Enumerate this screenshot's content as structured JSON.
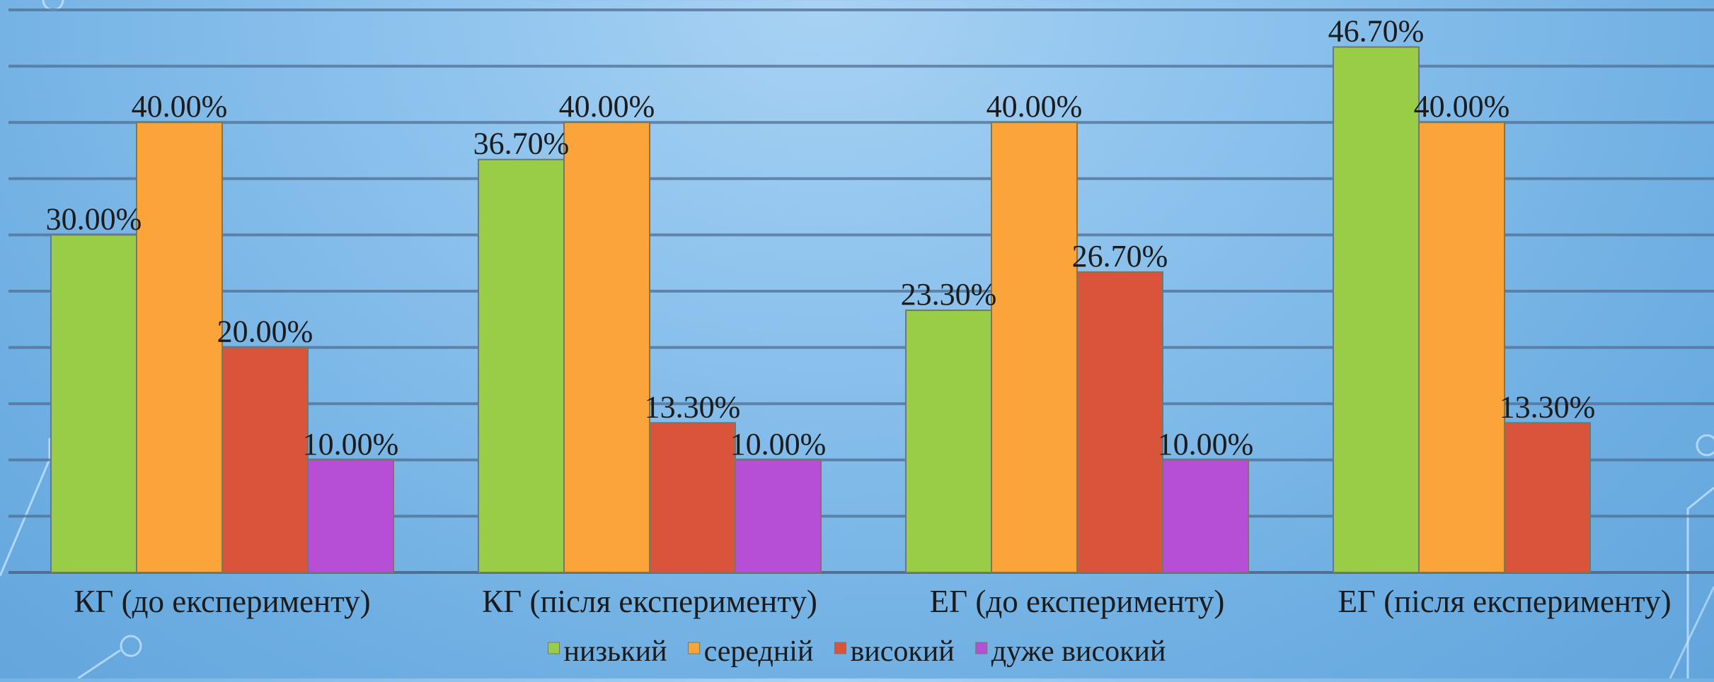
{
  "chart_data": {
    "type": "bar",
    "categories": [
      "КГ (до експерименту)",
      "КГ (після експерименту)",
      "ЕГ (до експерименту)",
      "ЕГ (після експерименту)"
    ],
    "series": [
      {
        "name": "низький",
        "color": "#9acd47",
        "values": [
          30.0,
          36.7,
          23.3,
          46.7
        ],
        "labels": [
          "30.00%",
          "36.70%",
          "23.30%",
          "46.70%"
        ]
      },
      {
        "name": "середній",
        "color": "#faa43a",
        "values": [
          40.0,
          40.0,
          40.0,
          40.0
        ],
        "labels": [
          "40.00%",
          "40.00%",
          "40.00%",
          "40.00%"
        ]
      },
      {
        "name": "високий",
        "color": "#d9543b",
        "values": [
          20.0,
          13.3,
          26.7,
          13.3
        ],
        "labels": [
          "20.00%",
          "13.30%",
          "26.70%",
          "13.30%"
        ]
      },
      {
        "name": "дуже високий",
        "color": "#b74fd6",
        "values": [
          10.0,
          10.0,
          10.0,
          null
        ],
        "labels": [
          "10.00%",
          "10.00%",
          "10.00%",
          ""
        ]
      }
    ],
    "ylim": [
      0,
      50
    ],
    "y_gridline_step": 5,
    "grid": true,
    "legend_position": "bottom",
    "title": "",
    "xlabel": "",
    "ylabel": ""
  }
}
